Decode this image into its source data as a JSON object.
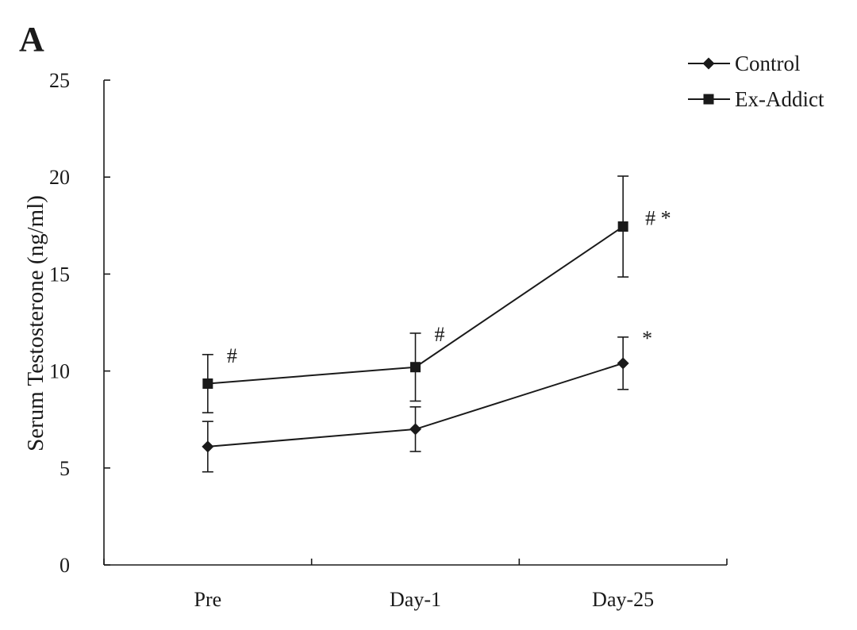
{
  "panel_label": "A",
  "chart_data": {
    "type": "line",
    "categories": [
      "Pre",
      "Day-1",
      "Day-25"
    ],
    "ylabel": "Serum Testosterone (ng/ml)",
    "xlabel": "",
    "ylim": [
      0,
      25
    ],
    "yticks": [
      "0",
      "5",
      "10",
      "15",
      "20",
      "25"
    ],
    "grid": false,
    "legend_position": "top-right",
    "series": [
      {
        "name": "Control",
        "marker": "diamond",
        "values": [
          6.1,
          7.0,
          10.4
        ],
        "errors": [
          1.3,
          1.15,
          1.35
        ],
        "annotations": [
          "",
          "",
          "*"
        ]
      },
      {
        "name": "Ex-Addict",
        "marker": "square",
        "values": [
          9.35,
          10.2,
          17.45
        ],
        "errors": [
          1.5,
          1.75,
          2.6
        ],
        "annotations": [
          "#",
          "#",
          "#  *"
        ]
      }
    ]
  }
}
